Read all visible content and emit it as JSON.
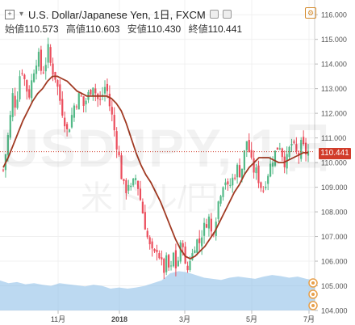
{
  "header": {
    "title": "U.S. Dollar/Japanese Yen, 1日, FXCM",
    "ohlc": [
      {
        "label": "始値",
        "value": "110.573"
      },
      {
        "label": "高値",
        "value": "110.603"
      },
      {
        "label": "安値",
        "value": "110.430"
      },
      {
        "label": "終値",
        "value": "110.441"
      }
    ],
    "icons": [
      "expand-icon",
      "collapse-chevron-icon",
      "visibility-icon",
      "settings-icon",
      "gear-icon"
    ]
  },
  "watermark": {
    "symbol": "USDJPY, 1日",
    "name": "米ドル/円"
  },
  "last_price_label": "110.441",
  "colors": {
    "up": "#53b987",
    "down": "#eb4d5c",
    "ma": "#a13a23",
    "volume": "#8fbfe8",
    "price_line": "#d13c2a"
  },
  "chart_data": {
    "type": "candlestick",
    "title": "U.S. Dollar/Japanese Yen, 1日, FXCM",
    "x_ticks": [
      "11月",
      "2018",
      "3月",
      "5月",
      "7月"
    ],
    "y_ticks": [
      "104.000",
      "105.000",
      "106.000",
      "107.000",
      "108.000",
      "109.000",
      "110.000",
      "111.000",
      "112.000",
      "113.000",
      "114.000",
      "115.000",
      "116.000"
    ],
    "ylim": [
      104.0,
      116.4
    ],
    "last_price": 110.441,
    "close_path": [
      109.7,
      110.6,
      111.6,
      112.8,
      112.2,
      113.5,
      113.8,
      113.1,
      112.7,
      113.4,
      114.1,
      114.3,
      113.6,
      113.9,
      114.6,
      113.8,
      113.6,
      113.0,
      112.3,
      111.8,
      111.2,
      111.7,
      112.3,
      112.5,
      112.8,
      112.3,
      112.6,
      112.9,
      113.2,
      112.7,
      112.4,
      112.8,
      113.2,
      112.4,
      111.8,
      111.0,
      110.3,
      109.3,
      108.8,
      109.2,
      108.8,
      109.5,
      109.0,
      108.3,
      107.6,
      106.9,
      106.4,
      106.2,
      106.6,
      106.0,
      105.6,
      106.1,
      105.4,
      106.3,
      105.6,
      106.5,
      106.8,
      105.3,
      106.1,
      106.3,
      106.9,
      106.7,
      107.2,
      107.5,
      107.8,
      107.0,
      107.6,
      108.4,
      109.0,
      109.4,
      108.9,
      109.2,
      109.5,
      109.8,
      109.5,
      110.3,
      111.0,
      110.1,
      109.7,
      109.6,
      109.1,
      108.9,
      109.4,
      109.8,
      110.2,
      110.5,
      110.8,
      110.3,
      109.9,
      110.5,
      110.8,
      110.4,
      110.3,
      110.8,
      110.4,
      110.441
    ],
    "ma_path": [
      109.8,
      110.2,
      110.7,
      111.2,
      111.7,
      112.1,
      112.5,
      112.8,
      113.0,
      113.3,
      113.5,
      113.5,
      113.4,
      113.3,
      113.1,
      112.9,
      112.8,
      112.7,
      112.7,
      112.7,
      112.7,
      112.7,
      112.6,
      112.4,
      112.1,
      111.6,
      111.0,
      110.4,
      109.9,
      109.5,
      109.2,
      108.8,
      108.4,
      107.9,
      107.4,
      106.9,
      106.5,
      106.2,
      106.1,
      106.2,
      106.4,
      106.6,
      106.9,
      107.2,
      107.6,
      108.0,
      108.4,
      108.8,
      109.1,
      109.5,
      109.8,
      110.0,
      110.2,
      110.2,
      110.2,
      110.1,
      110.0,
      110.0,
      110.1,
      110.2,
      110.3,
      110.4,
      110.4
    ],
    "volume_profile": [
      0.55,
      0.5,
      0.52,
      0.48,
      0.5,
      0.47,
      0.45,
      0.5,
      0.48,
      0.46,
      0.44,
      0.47,
      0.45,
      0.4,
      0.42,
      0.4,
      0.42,
      0.45,
      0.5,
      0.55,
      0.68,
      0.72,
      0.7,
      0.65,
      0.6,
      0.58,
      0.56,
      0.6,
      0.62,
      0.6,
      0.58,
      0.62,
      0.65,
      0.63,
      0.6,
      0.62,
      0.58,
      0.55
    ]
  }
}
